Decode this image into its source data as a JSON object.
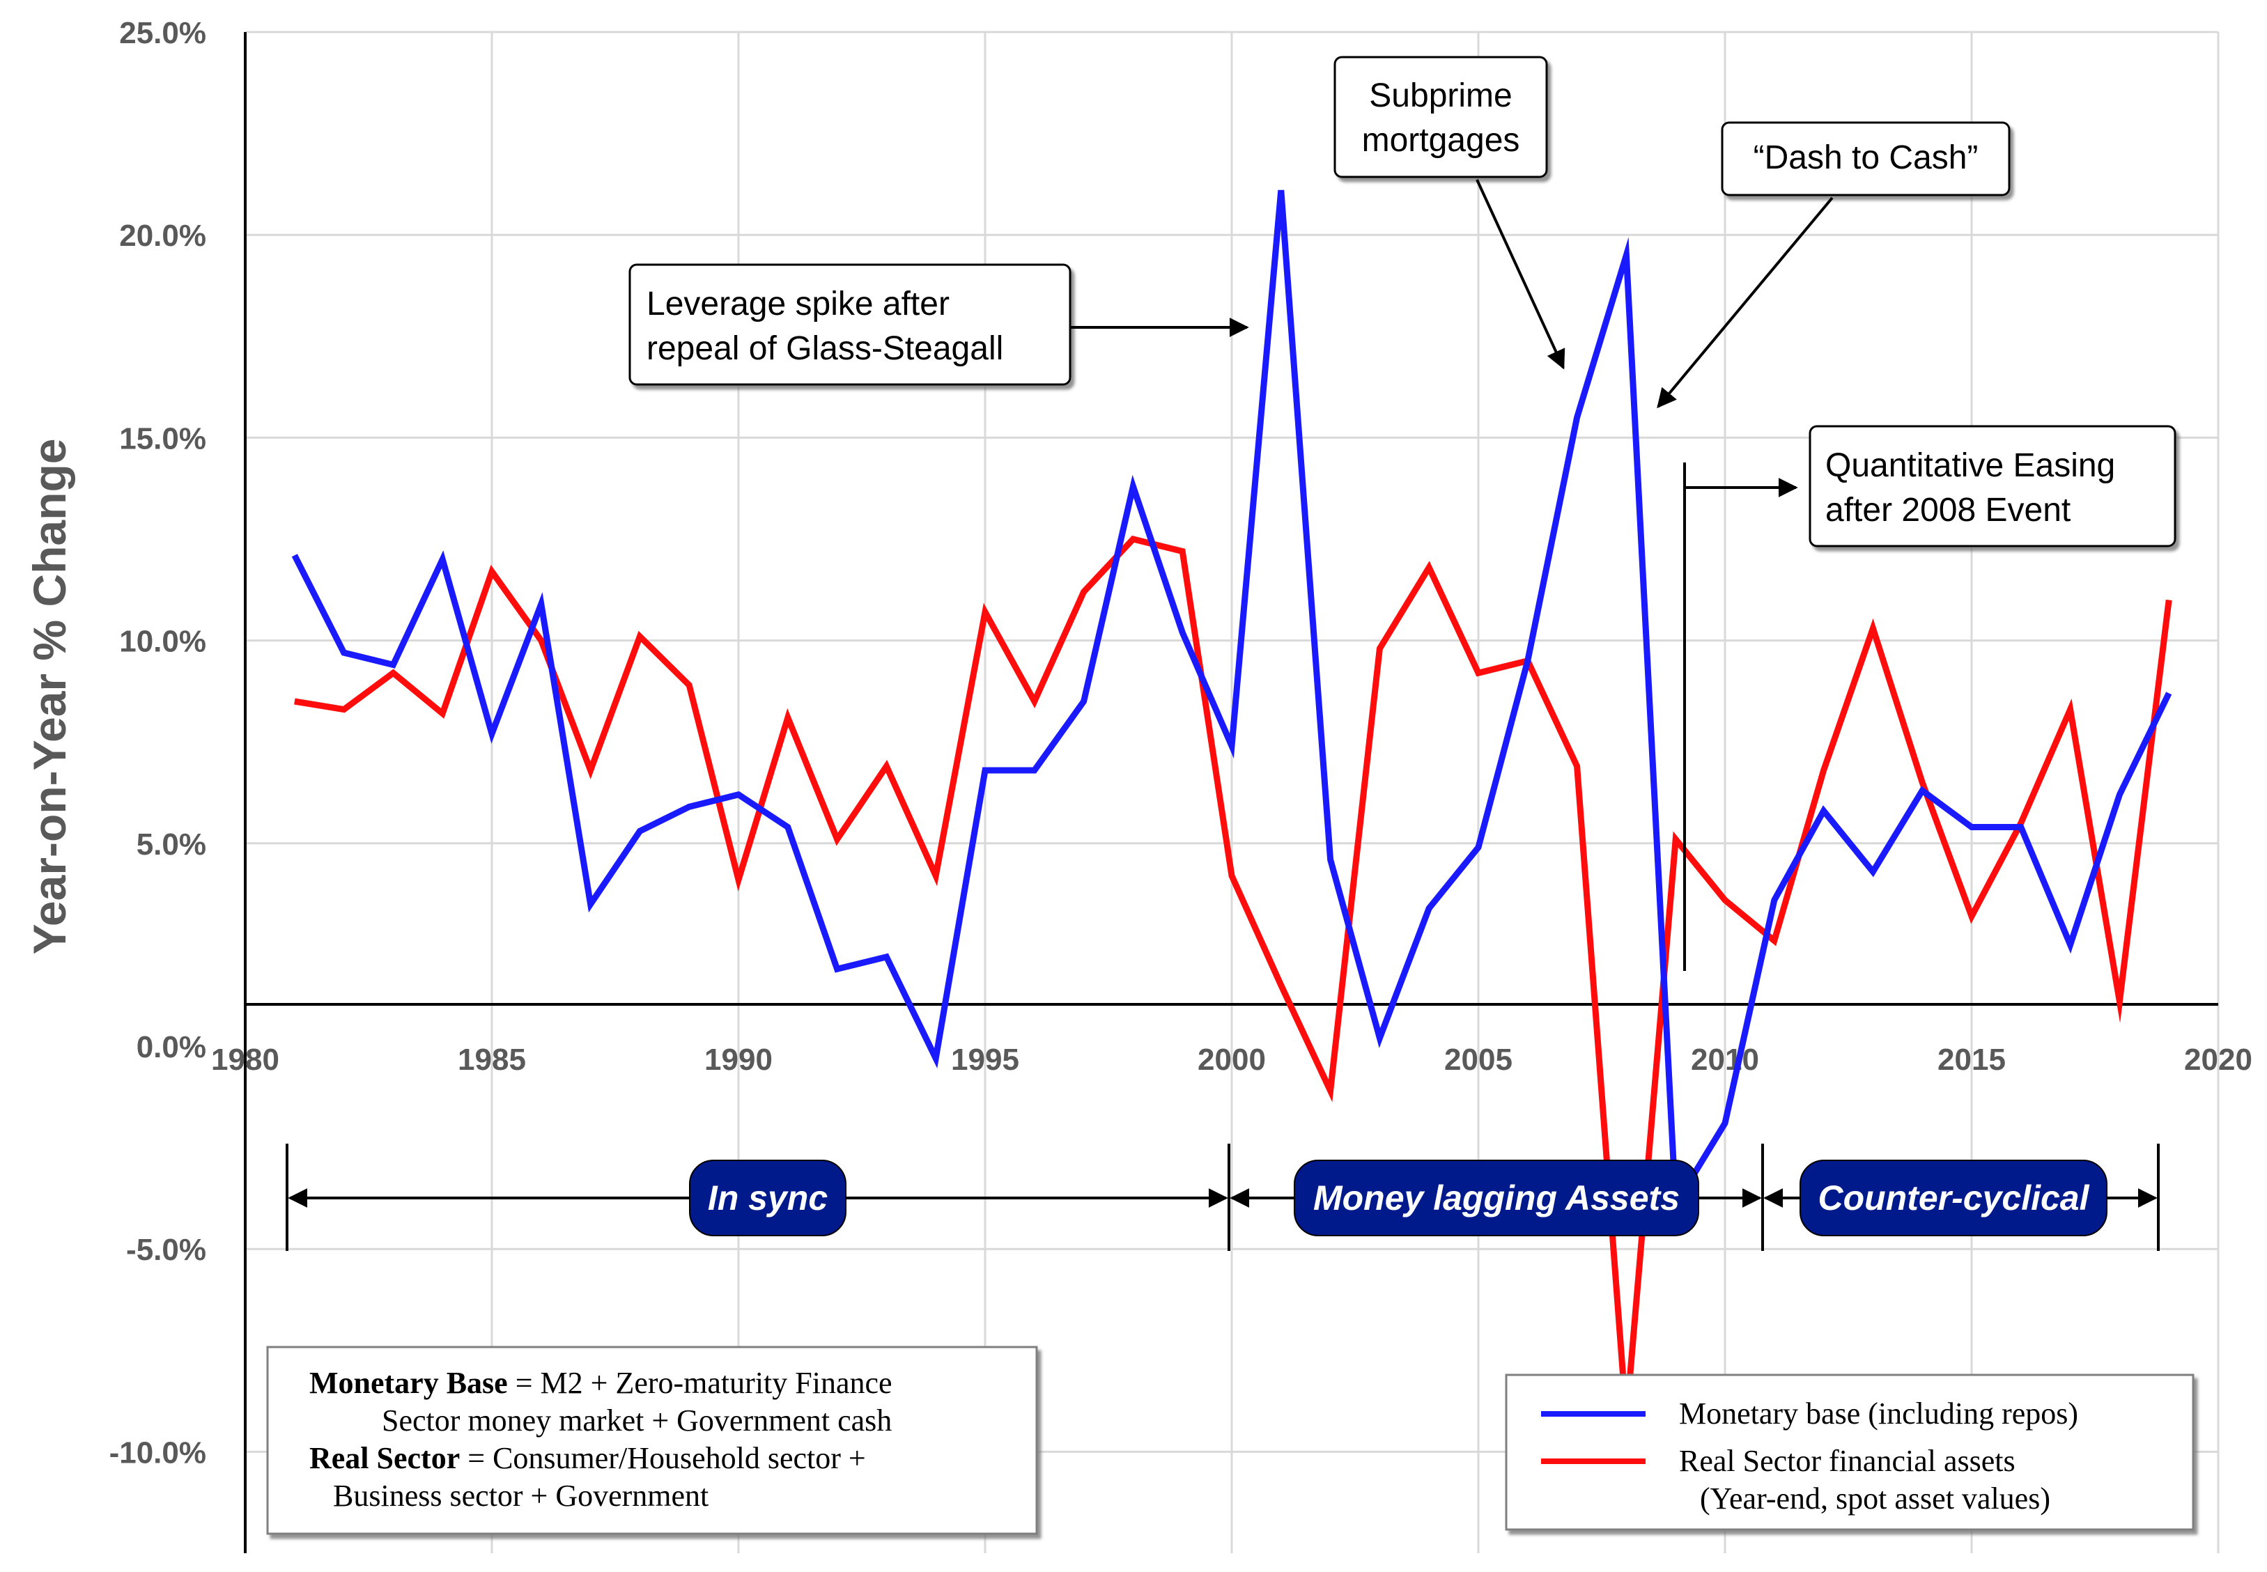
{
  "chart_data": {
    "type": "line",
    "title": "",
    "xlabel": "",
    "ylabel": "Year-on-Year  % Change",
    "xlim": [
      1980,
      2020
    ],
    "ylim": [
      -12.5,
      25.0
    ],
    "x_ticks": [
      1980,
      1985,
      1990,
      1995,
      2000,
      2005,
      2010,
      2015,
      2020
    ],
    "x_tick_labels": [
      "1980",
      "1985",
      "1990",
      "1995",
      "2000",
      "2005",
      "2010",
      "2015",
      "2020"
    ],
    "y_ticks": [
      25,
      20,
      15,
      10,
      5,
      0,
      -5,
      -10
    ],
    "y_tick_labels": [
      "25.0%",
      "20.0%",
      "15.0%",
      "10.0%",
      "5.0%",
      "0.0%",
      "-5.0%",
      "-10.0%"
    ],
    "grid": true,
    "x": [
      1981,
      1982,
      1983,
      1984,
      1985,
      1986,
      1987,
      1988,
      1989,
      1990,
      1991,
      1992,
      1993,
      1994,
      1995,
      1996,
      1997,
      1998,
      1999,
      2000,
      2001,
      2002,
      2003,
      2004,
      2005,
      2006,
      2007,
      2008,
      2009,
      2010,
      2011,
      2012,
      2013,
      2014,
      2015,
      2016,
      2017,
      2018,
      2019
    ],
    "series": [
      {
        "name": "Monetary base (including repos)",
        "color": "#1a1aff",
        "values": [
          12.1,
          9.7,
          9.4,
          12.0,
          7.7,
          10.9,
          3.5,
          5.3,
          5.9,
          6.2,
          5.4,
          1.9,
          2.2,
          -0.3,
          6.8,
          6.8,
          8.5,
          13.8,
          10.2,
          7.4,
          21.1,
          4.6,
          0.2,
          3.4,
          4.9,
          9.5,
          15.5,
          19.5,
          -3.9,
          -1.9,
          3.6,
          5.8,
          4.3,
          6.3,
          5.4,
          5.4,
          2.5,
          6.2,
          8.7
        ]
      },
      {
        "name": "Real Sector financial assets",
        "name_line2": "(Year-end, spot asset values)",
        "color": "#ff0d0d",
        "values": [
          8.5,
          8.3,
          9.2,
          8.2,
          11.7,
          10.0,
          6.8,
          10.1,
          8.9,
          4.1,
          8.1,
          5.1,
          6.9,
          4.2,
          10.7,
          8.5,
          11.2,
          12.5,
          12.2,
          4.2,
          1.5,
          -1.1,
          9.8,
          11.8,
          9.2,
          9.5,
          6.9,
          -9.2,
          5.1,
          3.6,
          2.6,
          6.8,
          10.3,
          6.5,
          3.2,
          5.5,
          8.3,
          1.1,
          11.0
        ]
      }
    ],
    "annotations": {
      "glass_steagall": [
        "Leverage spike after",
        "repeal of Glass-Steagall"
      ],
      "subprime": [
        "Subprime",
        "mortgages"
      ],
      "dash_to_cash": [
        "“Dash to Cash”"
      ],
      "qe": [
        "Quantitative Easing",
        "after 2008 Event"
      ]
    },
    "periods": [
      {
        "label": "In sync",
        "start": 1981,
        "end": 2000
      },
      {
        "label": "Money lagging Assets",
        "start": 2000,
        "end": 2011
      },
      {
        "label": "Counter-cyclical",
        "start": 2011,
        "end": 2019
      }
    ],
    "definitions": [
      {
        "term": "Monetary Base",
        "text": " = M2 + Zero-maturity Finance"
      },
      {
        "term": "",
        "text": "Sector money market + Government cash"
      },
      {
        "term": "Real Sector",
        "text": " = Consumer/Household sector +"
      },
      {
        "term": "",
        "text": "Business sector + Government"
      }
    ],
    "legend": {
      "position": "bottom-right"
    }
  }
}
